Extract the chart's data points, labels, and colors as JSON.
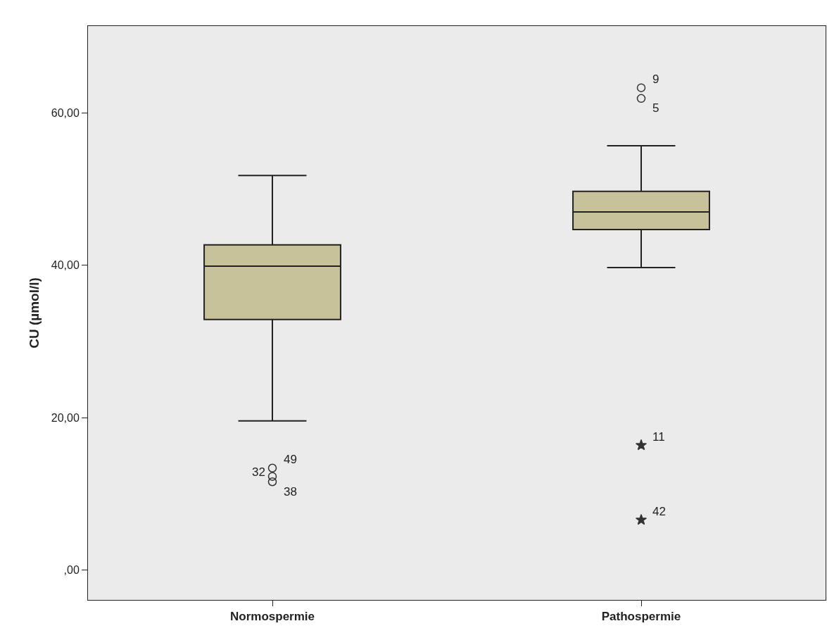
{
  "chart_data": {
    "type": "box",
    "ylabel": "CU (µmol/l)",
    "categories": [
      "Normospermie",
      "Pathospermie"
    ],
    "ylim": [
      -3.9,
      71.4
    ],
    "yticks": [
      {
        "value": 0,
        "label": ",00"
      },
      {
        "value": 20,
        "label": "20,00"
      },
      {
        "value": 40,
        "label": "40,00"
      },
      {
        "value": 60,
        "label": "60,00"
      }
    ],
    "grid": false,
    "series": [
      {
        "color": "#c8c29a",
        "boxes": [
          {
            "low": 19.6,
            "q1": 32.9,
            "median": 39.9,
            "q3": 42.7,
            "high": 51.8
          },
          {
            "low": 39.7,
            "q1": 44.7,
            "median": 47.0,
            "q3": 49.7,
            "high": 55.7
          }
        ]
      },
      {
        "type": "scatter",
        "marker": "circle",
        "color": "#333333",
        "x": [
          "Normospermie",
          "Normospermie",
          "Normospermie",
          "Pathospermie",
          "Pathospermie"
        ],
        "values": [
          13.4,
          12.3,
          11.6,
          63.3,
          61.9
        ]
      },
      {
        "type": "scatter",
        "marker": "star",
        "color": "#333333",
        "x": [
          "Pathospermie",
          "Pathospermie"
        ],
        "values": [
          16.4,
          6.6
        ]
      }
    ],
    "annotations": [
      {
        "text": "49",
        "x": "Normospermie",
        "y": 13.4
      },
      {
        "text": "32",
        "x": "Normospermie",
        "y": 12.3
      },
      {
        "text": "38",
        "x": "Normospermie",
        "y": 11.6
      },
      {
        "text": "9",
        "x": "Pathospermie",
        "y": 63.3
      },
      {
        "text": "5",
        "x": "Pathospermie",
        "y": 61.9
      },
      {
        "text": "11",
        "x": "Pathospermie",
        "y": 16.4
      },
      {
        "text": "42",
        "x": "Pathospermie",
        "y": 6.6
      }
    ]
  }
}
